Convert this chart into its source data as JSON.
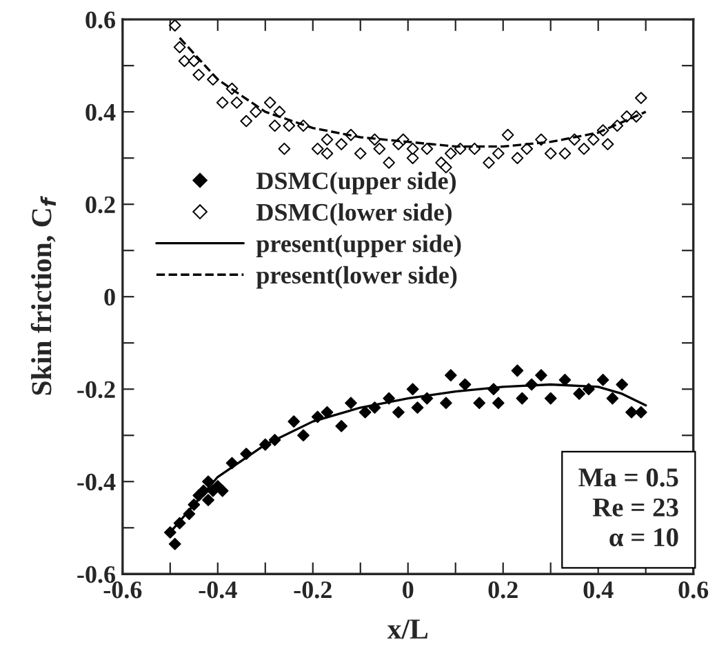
{
  "chart_data": {
    "type": "scatter",
    "xlabel": "x/L",
    "ylabel": "Skin friction, C$_{f}$",
    "xlim": [
      -0.6,
      0.6
    ],
    "ylim": [
      -0.6,
      0.6
    ],
    "xticks": [
      -0.6,
      {
        "value": -0.5,
        "label": null
      },
      -0.4,
      {
        "value": -0.3,
        "label": null
      },
      -0.2,
      {
        "value": -0.1,
        "label": null
      },
      0,
      {
        "value": 0.1,
        "label": null
      },
      0.2,
      {
        "value": 0.3,
        "label": null
      },
      0.4,
      {
        "value": 0.5,
        "label": null
      },
      0.6
    ],
    "yticks": [
      -0.6,
      {
        "value": -0.5,
        "label": null
      },
      -0.4,
      {
        "value": -0.3,
        "label": null
      },
      -0.2,
      {
        "value": -0.1,
        "label": null
      },
      0,
      {
        "value": 0.1,
        "label": null
      },
      0.2,
      {
        "value": 0.3,
        "label": null
      },
      0.4,
      {
        "value": 0.5,
        "label": null
      },
      0.6
    ],
    "grid": false,
    "legend": "left",
    "annotations": [
      "Ma = 0.5\nRe = 23\nα = 10"
    ],
    "series": [
      {
        "name": "DSMC(upper side)",
        "marker": "diamond",
        "color": "#000000",
        "x": [
          -0.5,
          -0.49,
          -0.48,
          -0.46,
          -0.44,
          -0.45,
          -0.43,
          -0.42,
          -0.42,
          -0.41,
          -0.4,
          -0.39,
          -0.37,
          -0.34,
          -0.3,
          -0.28,
          -0.24,
          -0.22,
          -0.19,
          -0.17,
          -0.14,
          -0.12,
          -0.09,
          -0.07,
          -0.04,
          -0.02,
          0.01,
          0.02,
          0.04,
          0.08,
          0.09,
          0.12,
          0.15,
          0.18,
          0.19,
          0.23,
          0.24,
          0.26,
          0.28,
          0.3,
          0.33,
          0.36,
          0.38,
          0.41,
          0.43,
          0.45,
          0.47,
          0.49
        ],
        "values": [
          -0.51,
          -0.535,
          -0.49,
          -0.47,
          -0.43,
          -0.45,
          -0.42,
          -0.44,
          -0.4,
          -0.42,
          -0.41,
          -0.42,
          -0.36,
          -0.34,
          -0.32,
          -0.31,
          -0.27,
          -0.3,
          -0.26,
          -0.25,
          -0.28,
          -0.23,
          -0.25,
          -0.24,
          -0.22,
          -0.25,
          -0.2,
          -0.24,
          -0.22,
          -0.23,
          -0.17,
          -0.19,
          -0.23,
          -0.2,
          -0.23,
          -0.16,
          -0.22,
          -0.19,
          -0.17,
          -0.22,
          -0.18,
          -0.21,
          -0.2,
          -0.18,
          -0.22,
          -0.19,
          -0.25,
          -0.25
        ]
      },
      {
        "name": "DSMC(lower side)",
        "marker": "diamond",
        "color": "#ffffff",
        "x": [
          -0.49,
          -0.48,
          -0.47,
          -0.45,
          -0.44,
          -0.41,
          -0.39,
          -0.37,
          -0.36,
          -0.34,
          -0.32,
          -0.29,
          -0.28,
          -0.27,
          -0.26,
          -0.25,
          -0.22,
          -0.19,
          -0.17,
          -0.17,
          -0.14,
          -0.12,
          -0.1,
          -0.07,
          -0.06,
          -0.04,
          -0.02,
          -0.01,
          0.01,
          0.01,
          0.04,
          0.07,
          0.08,
          0.09,
          0.11,
          0.14,
          0.17,
          0.19,
          0.21,
          0.23,
          0.25,
          0.28,
          0.3,
          0.33,
          0.35,
          0.37,
          0.39,
          0.41,
          0.42,
          0.44,
          0.46,
          0.48,
          0.49
        ],
        "values": [
          0.587,
          0.54,
          0.51,
          0.51,
          0.48,
          0.47,
          0.42,
          0.45,
          0.42,
          0.38,
          0.4,
          0.42,
          0.37,
          0.4,
          0.32,
          0.37,
          0.37,
          0.32,
          0.31,
          0.34,
          0.33,
          0.35,
          0.31,
          0.34,
          0.32,
          0.29,
          0.33,
          0.34,
          0.3,
          0.32,
          0.32,
          0.29,
          0.28,
          0.31,
          0.32,
          0.32,
          0.29,
          0.31,
          0.35,
          0.3,
          0.32,
          0.34,
          0.31,
          0.31,
          0.34,
          0.32,
          0.34,
          0.36,
          0.33,
          0.37,
          0.39,
          0.39,
          0.43
        ]
      },
      {
        "name": "present(upper side)",
        "type": "line",
        "line_style": "solid",
        "color": "#000000",
        "x": [
          -0.5,
          -0.45,
          -0.4,
          -0.3,
          -0.2,
          -0.1,
          0,
          0.1,
          0.2,
          0.3,
          0.4,
          0.45,
          0.5
        ],
        "values": [
          -0.51,
          -0.45,
          -0.39,
          -0.32,
          -0.27,
          -0.24,
          -0.22,
          -0.205,
          -0.195,
          -0.19,
          -0.195,
          -0.21,
          -0.235
        ]
      },
      {
        "name": "present(lower side)",
        "type": "line",
        "line_style": "dashed",
        "color": "#000000",
        "x": [
          -0.48,
          -0.4,
          -0.3,
          -0.2,
          -0.1,
          0,
          0.1,
          0.2,
          0.3,
          0.4,
          0.5
        ],
        "values": [
          0.56,
          0.47,
          0.4,
          0.365,
          0.345,
          0.335,
          0.325,
          0.325,
          0.335,
          0.355,
          0.4
        ]
      }
    ]
  }
}
